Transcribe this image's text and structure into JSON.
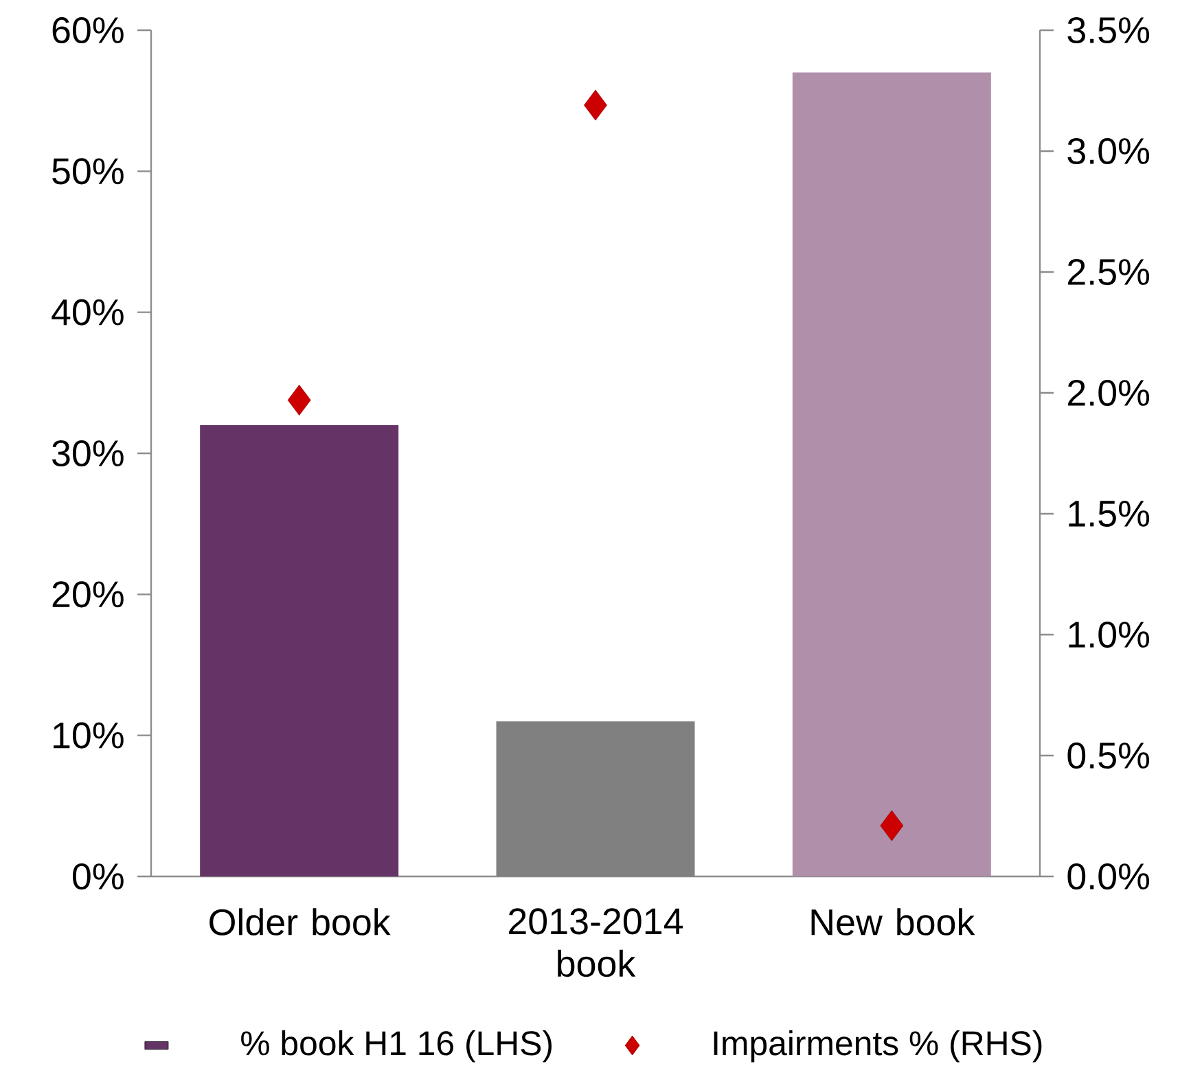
{
  "chart_data": {
    "type": "bar",
    "categories": [
      "Older book",
      "2013-2014 book",
      "New book"
    ],
    "series": [
      {
        "name": "% book H1 16 (LHS)",
        "colors": [
          "#663366",
          "#808080",
          "#b08fab"
        ],
        "values": [
          32,
          11,
          57
        ]
      },
      {
        "name": "Impairments % (RHS)",
        "type": "scatter",
        "axis": "y2",
        "color": "#cc0000",
        "marker": "diamond",
        "values": [
          1.97,
          3.19,
          0.21
        ]
      }
    ],
    "ylim": [
      0,
      60
    ],
    "yticks": [
      {
        "value": 0,
        "label": "0%"
      },
      {
        "value": 10,
        "label": "10%"
      },
      {
        "value": 20,
        "label": "20%"
      },
      {
        "value": 30,
        "label": "30%"
      },
      {
        "value": 40,
        "label": "40%"
      },
      {
        "value": 50,
        "label": "50%"
      },
      {
        "value": 60,
        "label": "60%"
      }
    ],
    "y2lim": [
      0,
      3.5
    ],
    "y2ticks": [
      {
        "value": 0,
        "label": "0.0%"
      },
      {
        "value": 0.5,
        "label": "0.5%"
      },
      {
        "value": 1,
        "label": "1.0%"
      },
      {
        "value": 1.5,
        "label": "1.5%"
      },
      {
        "value": 2,
        "label": "2.0%"
      },
      {
        "value": 2.5,
        "label": "2.5%"
      },
      {
        "value": 3,
        "label": "3.0%"
      },
      {
        "value": 3.5,
        "label": "3.5%"
      }
    ],
    "legend": "bottom",
    "grid": false
  }
}
